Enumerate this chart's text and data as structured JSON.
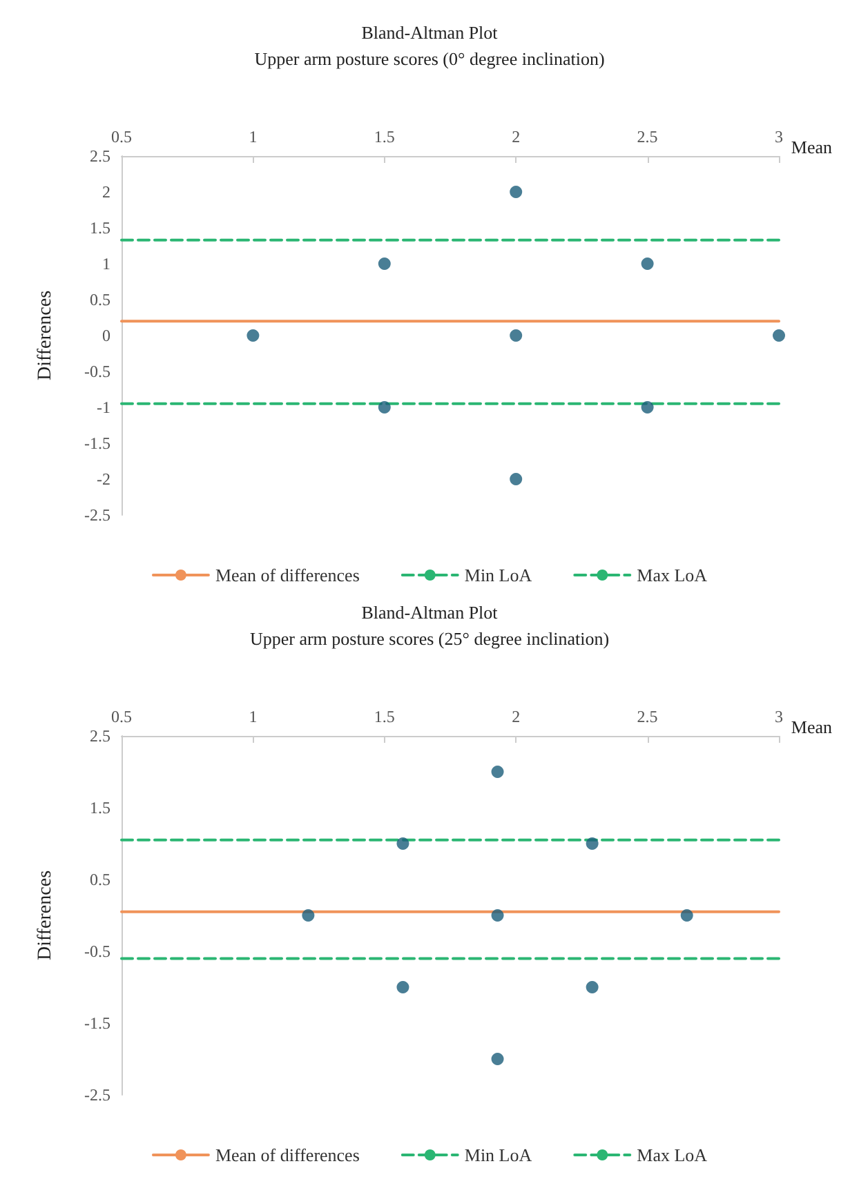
{
  "chart_data": [
    {
      "type": "scatter",
      "title": "Bland-Altman Plot",
      "subtitle": "Upper arm posture scores (0° degree inclination)",
      "xlabel": "Mean",
      "ylabel": "Differences",
      "xlim": [
        0.5,
        3
      ],
      "xticks": [
        0.5,
        1,
        1.5,
        2,
        2.5,
        3
      ],
      "ylim": [
        -2.5,
        2.5
      ],
      "yticks": [
        -2.5,
        -2,
        -1.5,
        -1,
        -0.5,
        0,
        0.5,
        1,
        1.5,
        2,
        2.5
      ],
      "grid": false,
      "legend": "bottom",
      "marker": "circle",
      "series": [
        {
          "type": "scatter",
          "color": "#1b5e7b",
          "x": [
            1,
            1.5,
            1.5,
            2,
            2,
            2,
            2.5,
            2.5,
            3
          ],
          "values": [
            0,
            1,
            -1,
            2,
            0,
            -2,
            1,
            -1,
            0
          ]
        },
        {
          "type": "line",
          "name": "Mean of differences",
          "color": "#f0935a",
          "marker": "none",
          "line_style": "solid",
          "x": [
            0.5,
            3
          ],
          "values": [
            0.2,
            0.2
          ]
        },
        {
          "type": "line",
          "name": "Min LoA",
          "color": "#2bb673",
          "marker": "none",
          "line_style": "dashed",
          "x": [
            0.5,
            3
          ],
          "values": [
            -0.95,
            -0.95
          ]
        },
        {
          "type": "line",
          "name": "Max LoA",
          "color": "#2bb673",
          "marker": "none",
          "line_style": "dashed",
          "x": [
            0.5,
            3
          ],
          "values": [
            1.33,
            1.33
          ]
        }
      ]
    },
    {
      "type": "scatter",
      "title": "Bland-Altman Plot",
      "subtitle": "Upper arm posture scores (25° degree inclination)",
      "xlabel": "Mean",
      "ylabel": "Differences",
      "xlim": [
        0.5,
        3
      ],
      "xticks": [
        0.5,
        1,
        1.5,
        2,
        2.5,
        3
      ],
      "ylim": [
        -2.5,
        2.5
      ],
      "yticks": [
        -2.5,
        -1.5,
        -0.5,
        0.5,
        1.5,
        2.5
      ],
      "grid": false,
      "legend": "bottom",
      "marker": "circle",
      "series": [
        {
          "type": "scatter",
          "color": "#1b5e7b",
          "x": [
            1.21,
            1.57,
            1.57,
            1.93,
            1.93,
            1.93,
            2.29,
            2.29,
            2.65
          ],
          "values": [
            0,
            1,
            -1,
            2,
            0,
            -2,
            1,
            -1,
            0
          ]
        },
        {
          "type": "line",
          "name": "Mean of differences",
          "color": "#f0935a",
          "marker": "none",
          "line_style": "solid",
          "x": [
            0.5,
            3
          ],
          "values": [
            0.05,
            0.05
          ]
        },
        {
          "type": "line",
          "name": "Min LoA",
          "color": "#2bb673",
          "marker": "none",
          "line_style": "dashed",
          "x": [
            0.5,
            3
          ],
          "values": [
            -0.6,
            -0.6
          ]
        },
        {
          "type": "line",
          "name": "Max LoA",
          "color": "#2bb673",
          "marker": "none",
          "line_style": "dashed",
          "x": [
            0.5,
            3
          ],
          "values": [
            1.05,
            1.05
          ]
        }
      ]
    }
  ]
}
